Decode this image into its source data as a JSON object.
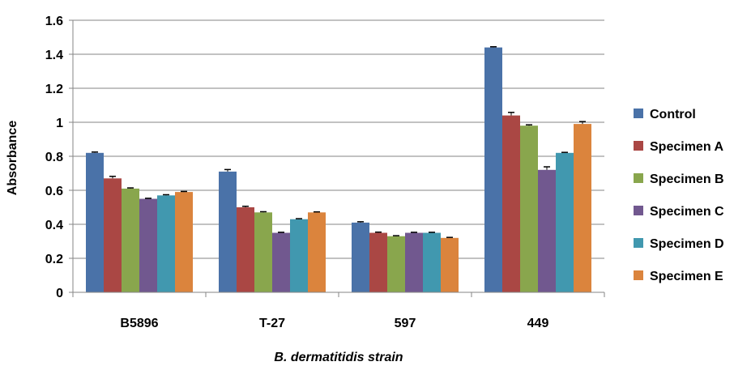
{
  "chart_data": {
    "type": "bar",
    "title": "",
    "xlabel": "B. dermatitidis strain",
    "ylabel": "Absorbance",
    "ylim": [
      0,
      1.6
    ],
    "yticks": [
      "0",
      "0.2",
      "0.4",
      "0.6",
      "0.8",
      "1",
      "1.2",
      "1.4",
      "1.6"
    ],
    "grid": true,
    "legend_position": "right",
    "categories": [
      "B5896",
      "T-27",
      "597",
      "449"
    ],
    "series": [
      {
        "name": "Control",
        "color": "#4a72a8",
        "values": [
          0.82,
          0.71,
          0.41,
          1.44
        ],
        "errors": [
          0.005,
          0.012,
          0.005,
          0.004
        ]
      },
      {
        "name": "Specimen A",
        "color": "#aa4744",
        "values": [
          0.67,
          0.5,
          0.35,
          1.04
        ],
        "errors": [
          0.012,
          0.006,
          0.004,
          0.018
        ]
      },
      {
        "name": "Specimen B",
        "color": "#89a64d",
        "values": [
          0.61,
          0.47,
          0.33,
          0.98
        ],
        "errors": [
          0.004,
          0.004,
          0.003,
          0.005
        ]
      },
      {
        "name": "Specimen C",
        "color": "#71588f",
        "values": [
          0.55,
          0.35,
          0.35,
          0.72
        ],
        "errors": [
          0.003,
          0.003,
          0.003,
          0.018
        ]
      },
      {
        "name": "Specimen D",
        "color": "#4198af",
        "values": [
          0.57,
          0.43,
          0.35,
          0.82
        ],
        "errors": [
          0.004,
          0.003,
          0.003,
          0.003
        ]
      },
      {
        "name": "Specimen E",
        "color": "#db843d",
        "values": [
          0.59,
          0.47,
          0.32,
          0.99
        ],
        "errors": [
          0.003,
          0.003,
          0.003,
          0.014
        ]
      }
    ]
  }
}
